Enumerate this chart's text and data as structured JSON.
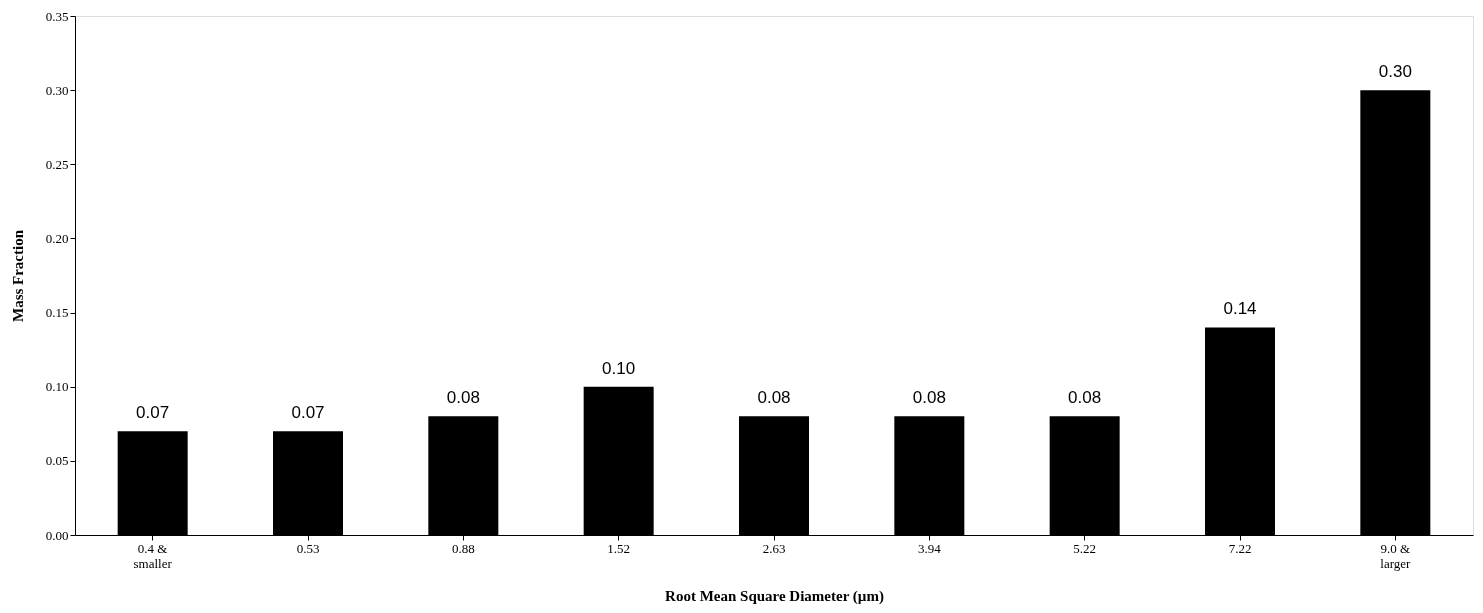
{
  "chart_data": {
    "type": "bar",
    "xlabel": "Root Mean Square Diameter (µm)",
    "ylabel": "Mass Fraction",
    "categories": [
      "0.4 &\nsmaller",
      "0.53",
      "0.88",
      "1.52",
      "2.63",
      "3.94",
      "5.22",
      "7.22",
      "9.0 &\nlarger"
    ],
    "values": [
      0.07,
      0.07,
      0.08,
      0.1,
      0.08,
      0.08,
      0.08,
      0.14,
      0.3
    ],
    "value_labels": [
      "0.07",
      "0.07",
      "0.08",
      "0.10",
      "0.08",
      "0.08",
      "0.08",
      "0.14",
      "0.30"
    ],
    "color": "#000000",
    "ylim": [
      0,
      0.35
    ],
    "yticks": [
      {
        "value": 0,
        "label": "0.00"
      },
      0.05,
      {
        "value": 0.1,
        "label": "0.10"
      },
      0.15,
      {
        "value": 0.2,
        "label": "0.20"
      },
      0.25,
      {
        "value": 0.3,
        "label": "0.30"
      },
      0.35
    ],
    "grid": false
  }
}
